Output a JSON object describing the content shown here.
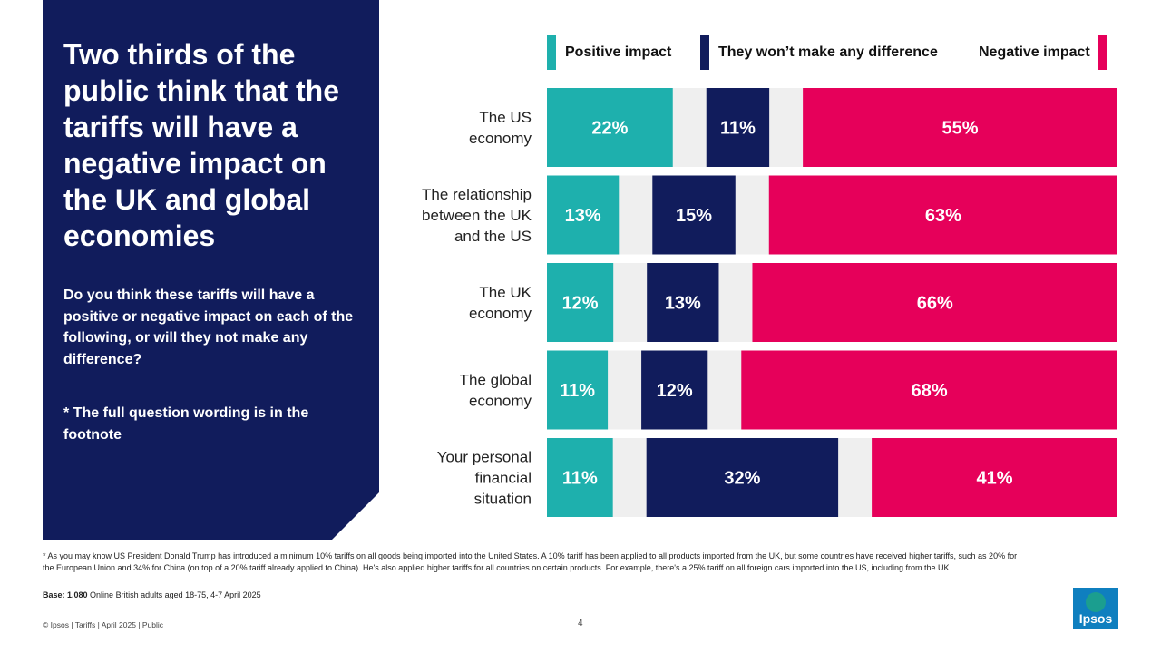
{
  "headline": "Two thirds of the public think that the tariffs will have a negative impact on the UK and global economies",
  "question": "Do you think these tariffs will have a positive or negative impact on each of the following, or will they not make any difference?",
  "note": "* The full question wording is in the footnote",
  "footnote": "* As you may know US President Donald Trump has introduced a minimum 10% tariffs on all goods being imported into the United States.  A 10% tariff has been applied to all products imported from the UK, but some countries have received higher tariffs, such as 20% for the European Union and 34% for China (on top of a 20% tariff already applied to China). He's also applied higher tariffs for all countries on certain products. For example, there's a 25% tariff on all foreign cars imported into the US, including from the UK",
  "base": {
    "label": "Base: 1,080",
    "text": " Online British adults aged 18-75, 4-7 April 2025"
  },
  "footer": {
    "left": "© Ipsos | Tariffs | April 2025 | Public",
    "page": "4"
  },
  "logo_text": "Ipsos",
  "colors": {
    "panel": "#111c5c",
    "positive": "#1eb0ad",
    "neutral": "#111c5c",
    "negative": "#e6005a",
    "gap": "#efefef"
  },
  "chart_data": {
    "type": "bar",
    "orientation": "horizontal-stacked",
    "title": "",
    "categories": [
      [
        "The US",
        "economy"
      ],
      [
        "The relationship",
        "between the UK",
        "and the US"
      ],
      [
        "The UK",
        "economy"
      ],
      [
        "The global",
        "economy"
      ],
      [
        "Your personal",
        "financial",
        "situation"
      ]
    ],
    "series": [
      {
        "name": "Positive impact",
        "color": "#1eb0ad",
        "values": [
          22,
          13,
          12,
          11,
          11
        ]
      },
      {
        "name": "They won't make any difference",
        "color": "#111c5c",
        "values": [
          11,
          15,
          13,
          12,
          32
        ]
      },
      {
        "name": "Negative impact",
        "color": "#e6005a",
        "values": [
          55,
          63,
          66,
          68,
          41
        ]
      }
    ],
    "value_suffix": "%",
    "legend": [
      "Positive impact",
      "They won’t make any difference",
      "Negative impact"
    ],
    "legend_position": "top"
  }
}
